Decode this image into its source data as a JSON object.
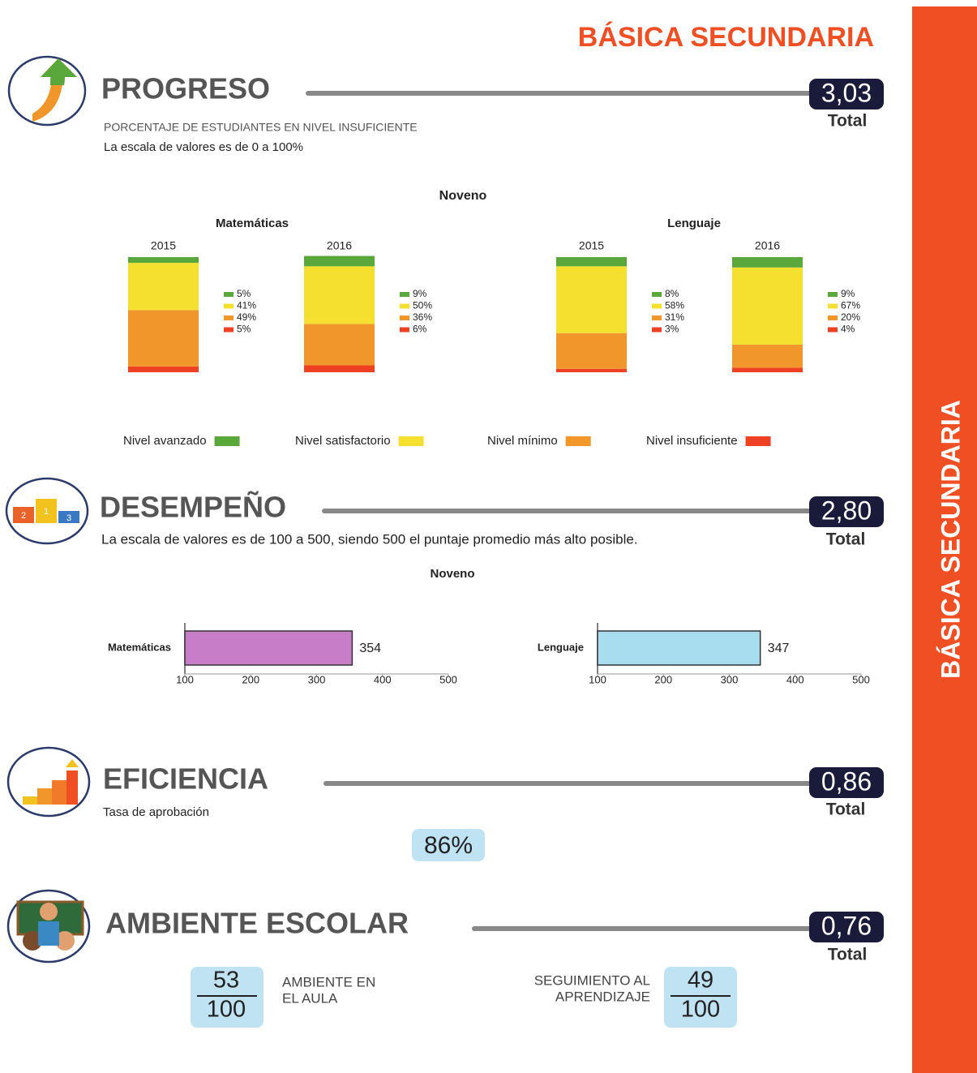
{
  "header": {
    "title": "BÁSICA SECUNDARIA"
  },
  "sidebar": {
    "label": "BÁSICA SECUNDARIA"
  },
  "sections": {
    "progreso": {
      "title": "PROGRESO",
      "score": "3,03",
      "score_label": "Total",
      "subtitle": "PORCENTAJE DE ESTUDIANTES EN NIVEL INSUFICIENTE",
      "note": "La escala de valores es de 0 a 100%"
    },
    "desempeno": {
      "title": "DESEMPEÑO",
      "score": "2,80",
      "score_label": "Total",
      "note": "La escala de valores es de 100 a 500, siendo 500 el puntaje promedio más alto posible.",
      "icon_labels": [
        "2",
        "1",
        "3"
      ]
    },
    "eficiencia": {
      "title": "EFICIENCIA",
      "score": "0,86",
      "score_label": "Total",
      "subtitle": "Tasa de aprobación",
      "rate": "86%"
    },
    "ambiente": {
      "title": "AMBIENTE ESCOLAR",
      "score": "0,76",
      "score_label": "Total",
      "items": [
        {
          "label_lines": [
            "AMBIENTE EN",
            "EL AULA"
          ],
          "numerator": "53",
          "denominator": "100"
        },
        {
          "label_lines": [
            "SEGUIMIENTO AL",
            "APRENDIZAJE"
          ],
          "numerator": "49",
          "denominator": "100"
        }
      ]
    }
  },
  "chart_data": [
    {
      "type": "bar",
      "stacked": true,
      "title": "Noveno",
      "ylim": [
        0,
        100
      ],
      "groups": [
        {
          "name": "Matemáticas",
          "categories": [
            "2015",
            "2016"
          ]
        },
        {
          "name": "Lenguaje",
          "categories": [
            "2015",
            "2016"
          ]
        }
      ],
      "series": [
        {
          "name": "Nivel avanzado",
          "color": "#5aa83c",
          "values": [
            5,
            9,
            8,
            9
          ],
          "value_labels": [
            "5%",
            "9%",
            "8%",
            "9%"
          ]
        },
        {
          "name": "Nivel satisfactorio",
          "color": "#f5e030",
          "values": [
            41,
            50,
            58,
            67
          ],
          "value_labels": [
            "41%",
            "50%",
            "58%",
            "67%"
          ]
        },
        {
          "name": "Nivel mínimo",
          "color": "#f0962a",
          "values": [
            49,
            36,
            31,
            20
          ],
          "value_labels": [
            "49%",
            "36%",
            "31%",
            "20%"
          ]
        },
        {
          "name": "Nivel insuficiente",
          "color": "#ee4023",
          "values": [
            5,
            6,
            3,
            4
          ],
          "value_labels": [
            "5%",
            "6%",
            "3%",
            "4%"
          ]
        }
      ]
    },
    {
      "type": "hbar",
      "title": "Noveno",
      "xlim": [
        100,
        500
      ],
      "xticks": [
        100,
        200,
        300,
        400,
        500
      ],
      "panels": [
        {
          "category": "Matemáticas",
          "value": 354,
          "color": "#c77dc7"
        },
        {
          "category": "Lenguaje",
          "value": 347,
          "color": "#a8dcef"
        }
      ]
    }
  ]
}
